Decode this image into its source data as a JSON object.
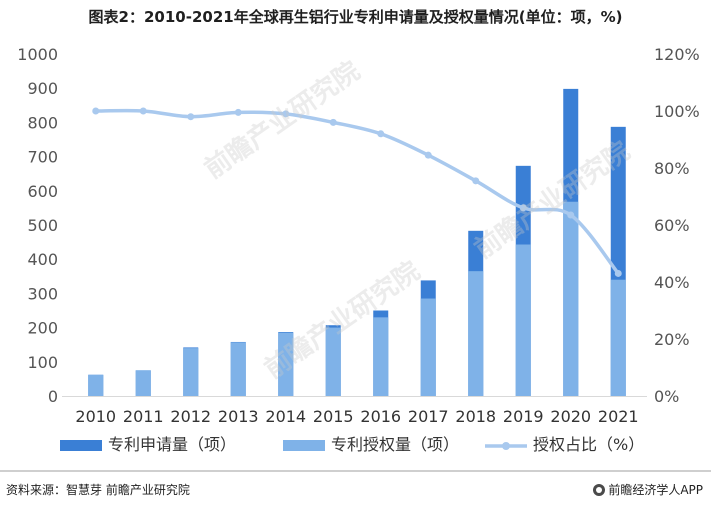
{
  "title": "图表2：2010-2021年全球再生铝行业专利申请量及授权量情况(单位：项，%)",
  "watermark": "前瞻产业研究院",
  "footer": {
    "source": "资料来源：智慧芽 前瞻产业研究院",
    "brand": "前瞻经济学人APP"
  },
  "colors": {
    "application": "#3a7fd5",
    "grant": "#7fb2e8",
    "ratio": "#a9c9ee"
  },
  "chart_data": {
    "type": "bar",
    "stacked": true,
    "categories": [
      "2010",
      "2011",
      "2012",
      "2013",
      "2014",
      "2015",
      "2016",
      "2017",
      "2018",
      "2019",
      "2020",
      "2021"
    ],
    "series": [
      {
        "name": "专利申请量（项）",
        "role": "application",
        "values": [
          62,
          75,
          142,
          158,
          187,
          207,
          250,
          338,
          483,
          673,
          898,
          787
        ]
      },
      {
        "name": "专利授权量（项）",
        "role": "grant",
        "values": [
          62,
          75,
          140,
          157,
          185,
          200,
          230,
          285,
          365,
          443,
          568,
          340
        ]
      },
      {
        "name": "授权占比（%）",
        "role": "ratio",
        "type": "line",
        "axis": "right",
        "values": [
          100,
          100,
          98,
          99.5,
          99,
          96,
          92,
          84.5,
          75.5,
          66,
          63.5,
          43
        ]
      }
    ],
    "y_left": {
      "min": 0,
      "max": 1000,
      "ticks": [
        0,
        100,
        200,
        300,
        400,
        500,
        600,
        700,
        800,
        900,
        1000
      ]
    },
    "y_right": {
      "min": 0,
      "max": 120,
      "ticks": [
        "0%",
        "20%",
        "40%",
        "60%",
        "80%",
        "100%",
        "120%"
      ]
    },
    "legend": [
      "专利申请量（项）",
      "专利授权量（项）",
      "授权占比（%）"
    ],
    "legend_position": "bottom",
    "grid": false
  }
}
